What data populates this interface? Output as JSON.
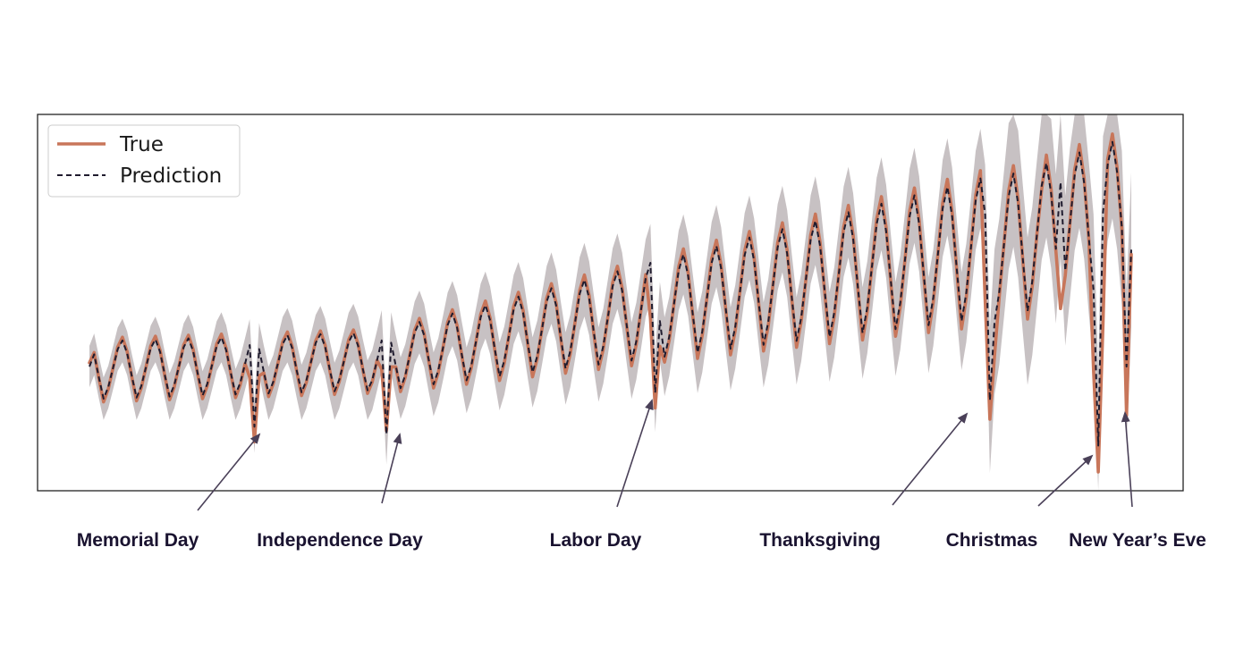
{
  "chart_data": {
    "type": "line",
    "title": "",
    "xlabel": "",
    "ylabel": "",
    "x_axis_ticks": "hidden",
    "y_axis_ticks": "hidden",
    "grid": false,
    "legend_placement": "top-left",
    "xlim": [
      0,
      221
    ],
    "ylim": [
      0,
      10
    ],
    "series": [
      {
        "name": "True",
        "style": "solid",
        "color": "#c8765a",
        "shape": "weekly cycle: rising trend with holiday dips",
        "key_points": [
          {
            "x": 0,
            "y": 3.4
          },
          {
            "x": 35,
            "y": 1.3
          },
          {
            "x": 63,
            "y": 1.6
          },
          {
            "x": 120,
            "y": 2.2
          },
          {
            "x": 191,
            "y": 1.9
          },
          {
            "x": 202,
            "y": 8.0
          },
          {
            "x": 214,
            "y": 0.5
          },
          {
            "x": 220,
            "y": 2.0
          }
        ]
      },
      {
        "name": "Prediction",
        "style": "dashed",
        "color": "#1f1b2e",
        "shape": "weekly cycle tracking True, slightly lagging at holidays",
        "key_points": [
          {
            "x": 0,
            "y": 3.3
          },
          {
            "x": 35,
            "y": 1.7
          },
          {
            "x": 63,
            "y": 1.5
          },
          {
            "x": 120,
            "y": 2.6
          },
          {
            "x": 191,
            "y": 2.4
          },
          {
            "x": 206,
            "y": 8.2
          },
          {
            "x": 214,
            "y": 1.2
          },
          {
            "x": 220,
            "y": 3.3
          }
        ]
      }
    ],
    "uncertainty_band": {
      "color": "#bdb6b8",
      "description": "grey confidence interval around the prediction"
    },
    "annotations": [
      {
        "label": "Memorial Day",
        "x": 35
      },
      {
        "label": "Independence Day",
        "x": 63
      },
      {
        "label": "Labor Day",
        "x": 120
      },
      {
        "label": "Thanksgiving",
        "x": 191
      },
      {
        "label": "Christmas",
        "x": 214
      },
      {
        "label": "New Year’s Eve",
        "x": 220
      }
    ]
  },
  "legend": {
    "true_label": "True",
    "prediction_label": "Prediction"
  },
  "colors": {
    "true_line": "#c8765a",
    "prediction_line": "#1f1b2e",
    "band": "#bdb6b8",
    "axis": "#222222",
    "annotation": "#4a4058"
  }
}
